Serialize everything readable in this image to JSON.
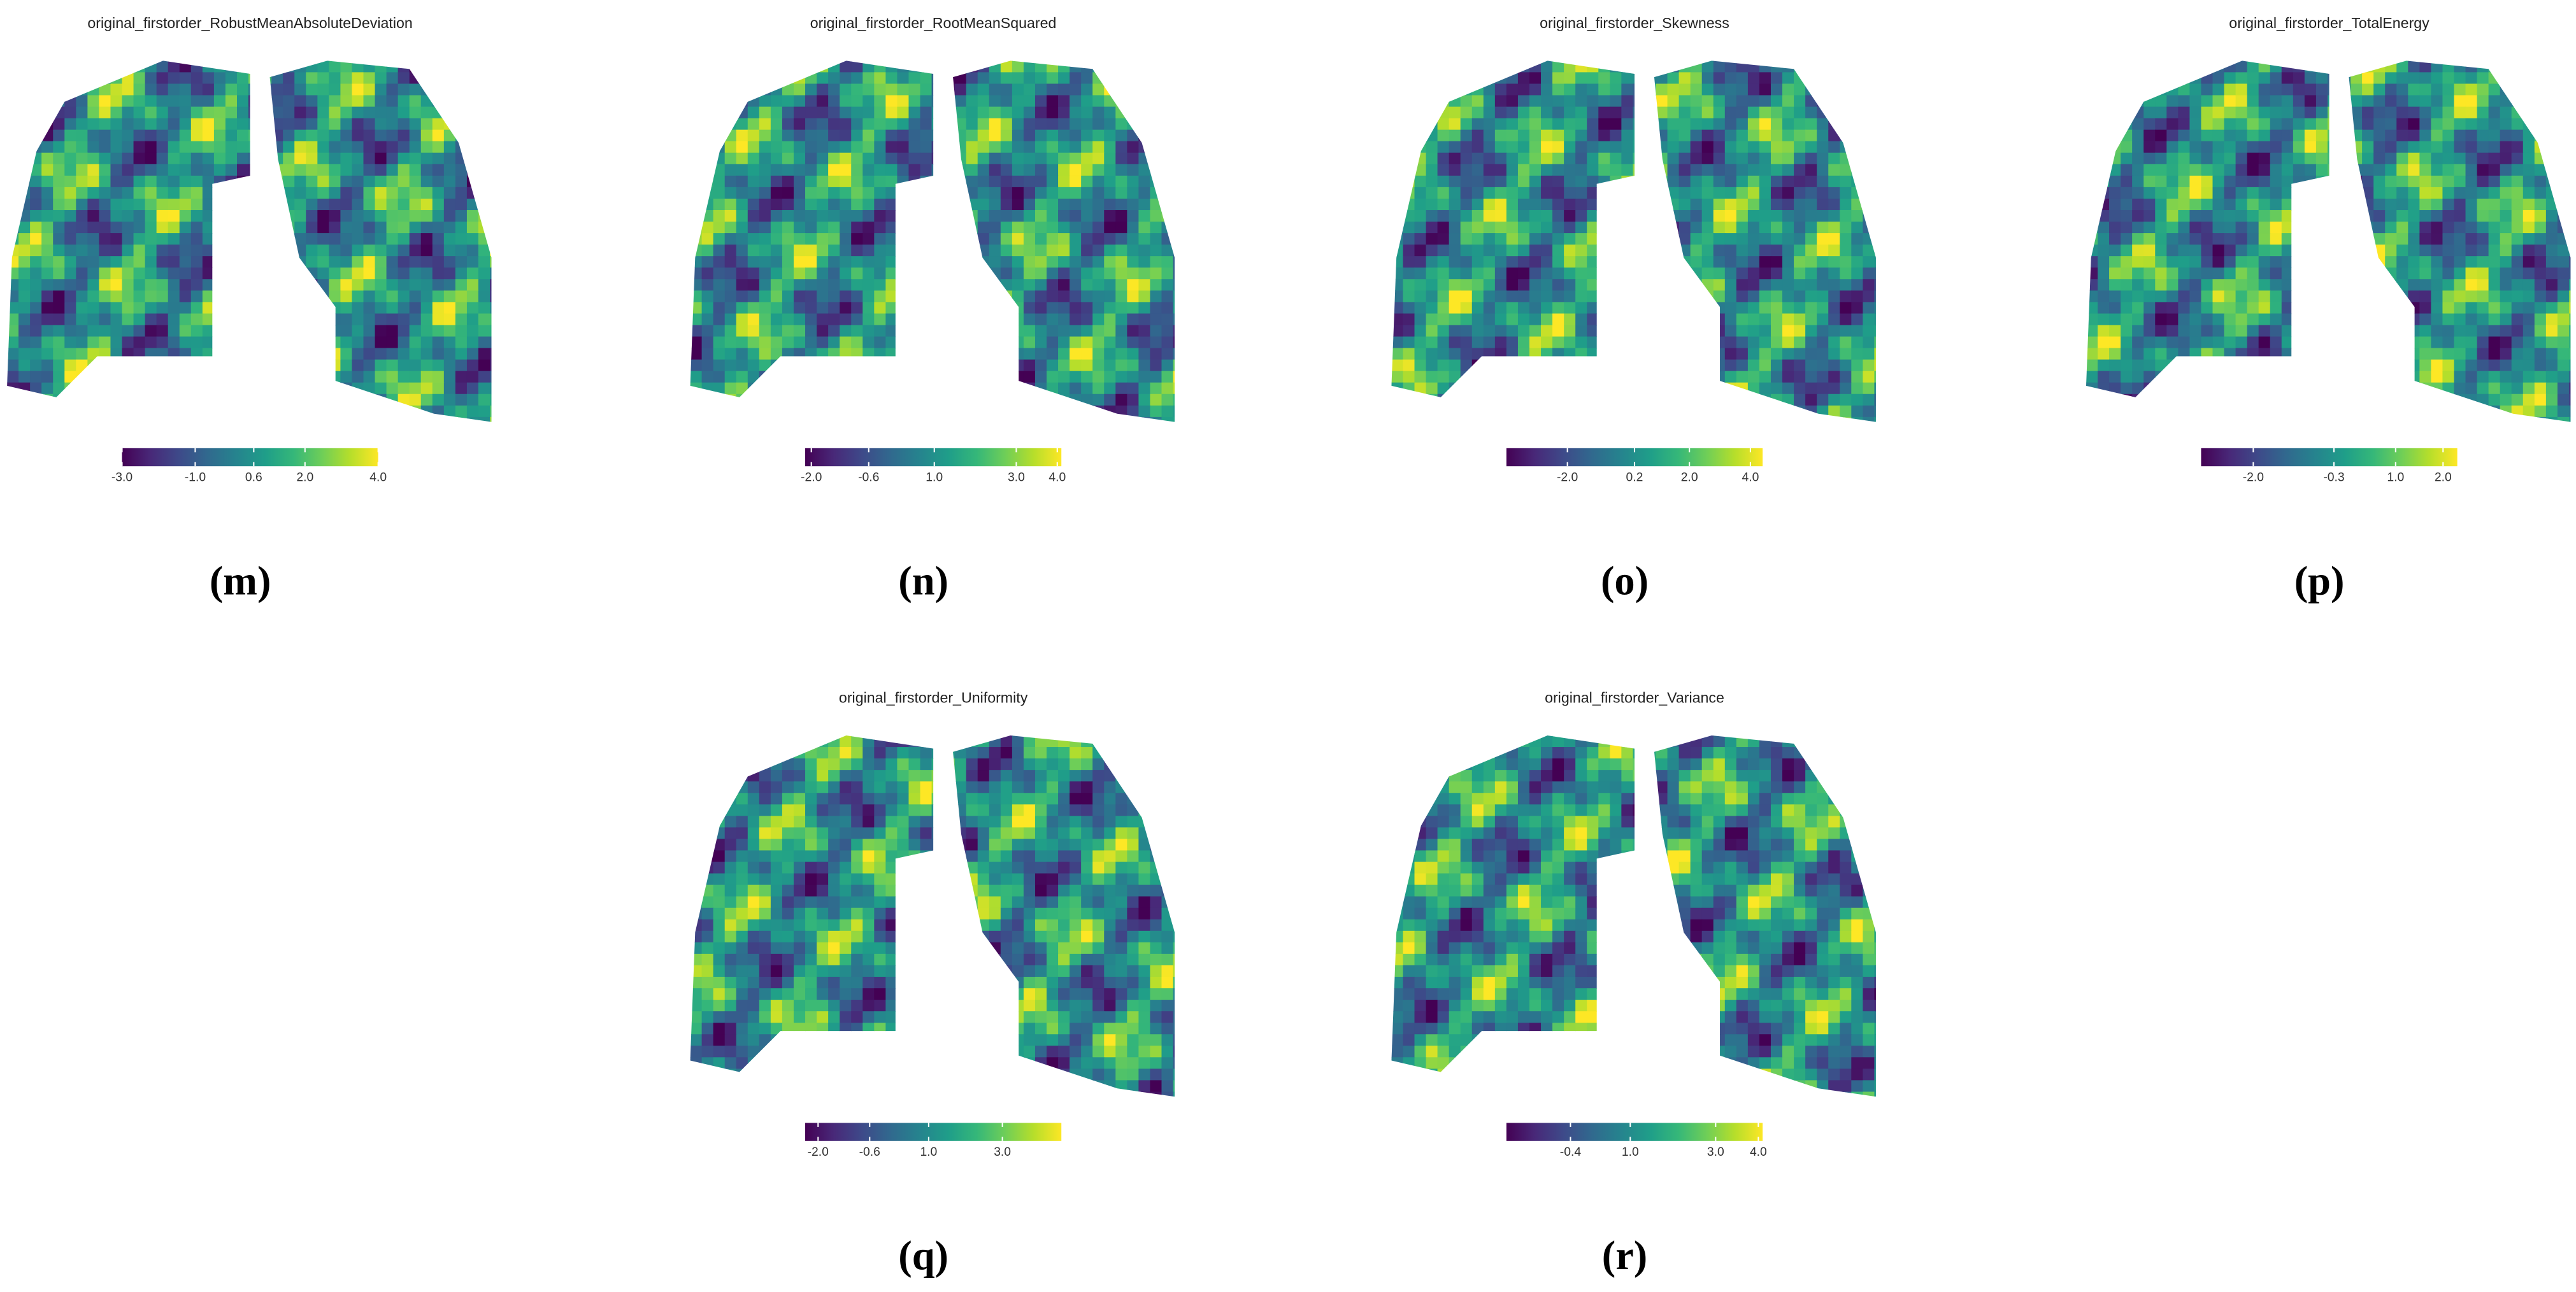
{
  "panels": [
    {
      "title": "original_firstorder_RobustMeanAbsoluteDeviation",
      "caption": "(m)",
      "colorbar": {
        "clim": [
          -3,
          4
        ],
        "ticks": [
          {
            "value": -3,
            "label": "-3.0"
          },
          {
            "value": -1,
            "label": "-1.0"
          },
          0.6,
          {
            "value": 2,
            "label": "2.0"
          },
          {
            "value": 4,
            "label": "4.0"
          }
        ]
      }
    },
    {
      "title": "original_firstorder_RootMeanSquared",
      "caption": "(n)",
      "colorbar": {
        "clim": [
          -2.15,
          4.1
        ],
        "ticks": [
          {
            "value": -2,
            "label": "-2.0"
          },
          -0.6,
          {
            "value": 1,
            "label": "1.0"
          },
          {
            "value": 3,
            "label": "3.0"
          },
          {
            "value": 4,
            "label": "4.0"
          }
        ]
      }
    },
    {
      "title": "original_firstorder_Skewness",
      "caption": "(o)",
      "colorbar": {
        "clim": [
          -4,
          4.4
        ],
        "ticks": [
          {
            "value": -2,
            "label": "-2.0"
          },
          0.2,
          {
            "value": 2,
            "label": "2.0"
          },
          {
            "value": 4,
            "label": "4.0"
          }
        ]
      }
    },
    {
      "title": "original_firstorder_TotalEnergy",
      "caption": "(p)",
      "colorbar": {
        "clim": [
          -3.1,
          2.3
        ],
        "ticks": [
          {
            "value": -2,
            "label": "-2.0"
          },
          -0.3,
          {
            "value": 1,
            "label": "1.0"
          },
          {
            "value": 2,
            "label": "2.0"
          }
        ]
      }
    },
    {
      "title": "original_firstorder_Uniformity",
      "caption": "(q)",
      "colorbar": {
        "clim": [
          -2.35,
          4.6
        ],
        "ticks": [
          {
            "value": -2,
            "label": "-2.0"
          },
          -0.6,
          {
            "value": 1,
            "label": "1.0"
          },
          {
            "value": 3,
            "label": "3.0"
          }
        ]
      }
    },
    {
      "title": "original_firstorder_Variance",
      "caption": "(r)",
      "colorbar": {
        "clim": [
          -1.9,
          4.1
        ],
        "ticks": [
          -0.4,
          {
            "value": 1,
            "label": "1.0"
          },
          {
            "value": 3,
            "label": "3.0"
          },
          {
            "value": 4,
            "label": "4.0"
          }
        ]
      }
    }
  ]
}
